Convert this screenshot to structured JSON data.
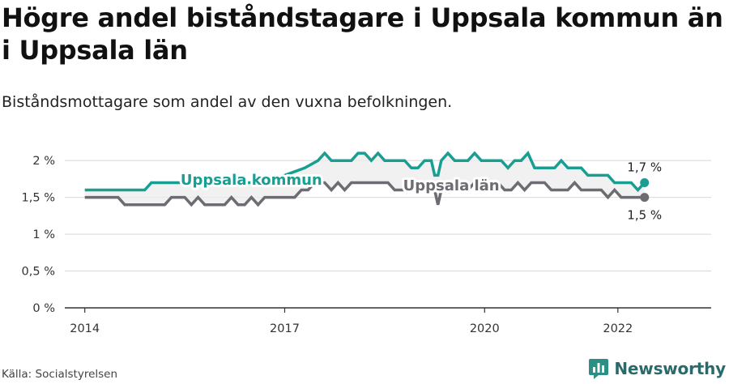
{
  "header": {
    "title": "Högre andel biståndstagare i Uppsala kommun än i Uppsala län",
    "subtitle": "Biståndsmottagare som andel av den vuxna befolkningen."
  },
  "footer": {
    "source": "Källa: Socialstyrelsen",
    "brand": "Newsworthy",
    "brand_icon": "bar-chart-logo-icon"
  },
  "chart_data": {
    "type": "line",
    "title": "",
    "xlabel": "",
    "ylabel": "",
    "xlim": [
      2013.7,
      2023.4
    ],
    "ylim": [
      0,
      2.2
    ],
    "x_ticks": [
      {
        "value": 2014,
        "label": "2014"
      },
      {
        "value": 2017,
        "label": "2017"
      },
      {
        "value": 2020,
        "label": "2020"
      },
      {
        "value": 2022,
        "label": "2022"
      }
    ],
    "y_ticks": [
      {
        "value": 0,
        "label": "0 %"
      },
      {
        "value": 0.5,
        "label": "0,5 %"
      },
      {
        "value": 1,
        "label": "1 %"
      },
      {
        "value": 1.5,
        "label": "1,5 %"
      },
      {
        "value": 2,
        "label": "2 %"
      }
    ],
    "grid": true,
    "legend": "none",
    "series": [
      {
        "name": "Uppsala kommun",
        "color": "#1a9e92",
        "end_label": "1,7 %",
        "points": [
          [
            2014.0,
            1.6
          ],
          [
            2014.6,
            1.6
          ],
          [
            2014.9,
            1.6
          ],
          [
            2015.0,
            1.7
          ],
          [
            2015.6,
            1.7
          ],
          [
            2016.0,
            1.7
          ],
          [
            2016.3,
            1.7
          ],
          [
            2016.8,
            1.7
          ],
          [
            2017.0,
            1.8
          ],
          [
            2017.3,
            1.9
          ],
          [
            2017.5,
            2.0
          ],
          [
            2017.6,
            2.1
          ],
          [
            2017.7,
            2.0
          ],
          [
            2018.0,
            2.0
          ],
          [
            2018.1,
            2.1
          ],
          [
            2018.2,
            2.1
          ],
          [
            2018.3,
            2.0
          ],
          [
            2018.4,
            2.1
          ],
          [
            2018.5,
            2.0
          ],
          [
            2018.8,
            2.0
          ],
          [
            2018.9,
            1.9
          ],
          [
            2019.0,
            1.9
          ],
          [
            2019.1,
            2.0
          ],
          [
            2019.2,
            2.0
          ],
          [
            2019.25,
            1.8
          ],
          [
            2019.3,
            1.8
          ],
          [
            2019.35,
            2.0
          ],
          [
            2019.45,
            2.1
          ],
          [
            2019.55,
            2.0
          ],
          [
            2019.75,
            2.0
          ],
          [
            2019.85,
            2.1
          ],
          [
            2019.95,
            2.0
          ],
          [
            2020.25,
            2.0
          ],
          [
            2020.35,
            1.9
          ],
          [
            2020.45,
            2.0
          ],
          [
            2020.55,
            2.0
          ],
          [
            2020.65,
            2.1
          ],
          [
            2020.75,
            1.9
          ],
          [
            2021.05,
            1.9
          ],
          [
            2021.15,
            2.0
          ],
          [
            2021.25,
            1.9
          ],
          [
            2021.45,
            1.9
          ],
          [
            2021.55,
            1.8
          ],
          [
            2021.85,
            1.8
          ],
          [
            2021.95,
            1.7
          ],
          [
            2022.2,
            1.7
          ],
          [
            2022.3,
            1.6
          ],
          [
            2022.4,
            1.7
          ]
        ]
      },
      {
        "name": "Uppsala län",
        "color": "#6c6c72",
        "end_label": "1,5 %",
        "points": [
          [
            2014.0,
            1.5
          ],
          [
            2014.5,
            1.5
          ],
          [
            2014.6,
            1.4
          ],
          [
            2015.2,
            1.4
          ],
          [
            2015.3,
            1.5
          ],
          [
            2015.5,
            1.5
          ],
          [
            2015.6,
            1.4
          ],
          [
            2015.7,
            1.5
          ],
          [
            2015.8,
            1.4
          ],
          [
            2016.1,
            1.4
          ],
          [
            2016.2,
            1.5
          ],
          [
            2016.3,
            1.4
          ],
          [
            2016.4,
            1.4
          ],
          [
            2016.5,
            1.5
          ],
          [
            2016.6,
            1.4
          ],
          [
            2016.7,
            1.5
          ],
          [
            2017.0,
            1.5
          ],
          [
            2017.15,
            1.5
          ],
          [
            2017.25,
            1.6
          ],
          [
            2017.35,
            1.6
          ],
          [
            2017.45,
            1.7
          ],
          [
            2017.6,
            1.7
          ],
          [
            2017.7,
            1.6
          ],
          [
            2017.8,
            1.7
          ],
          [
            2017.9,
            1.6
          ],
          [
            2018.0,
            1.7
          ],
          [
            2018.55,
            1.7
          ],
          [
            2018.65,
            1.6
          ],
          [
            2019.0,
            1.6
          ],
          [
            2019.1,
            1.6
          ],
          [
            2019.2,
            1.7
          ],
          [
            2019.25,
            1.6
          ],
          [
            2019.3,
            1.4
          ],
          [
            2019.35,
            1.6
          ],
          [
            2019.45,
            1.7
          ],
          [
            2019.55,
            1.6
          ],
          [
            2019.75,
            1.6
          ],
          [
            2019.85,
            1.7
          ],
          [
            2020.0,
            1.7
          ],
          [
            2020.1,
            1.6
          ],
          [
            2020.2,
            1.7
          ],
          [
            2020.3,
            1.6
          ],
          [
            2020.4,
            1.6
          ],
          [
            2020.5,
            1.7
          ],
          [
            2020.6,
            1.6
          ],
          [
            2020.7,
            1.7
          ],
          [
            2020.9,
            1.7
          ],
          [
            2021.0,
            1.6
          ],
          [
            2021.25,
            1.6
          ],
          [
            2021.35,
            1.7
          ],
          [
            2021.45,
            1.6
          ],
          [
            2021.75,
            1.6
          ],
          [
            2021.85,
            1.5
          ],
          [
            2021.95,
            1.6
          ],
          [
            2022.05,
            1.5
          ],
          [
            2022.4,
            1.5
          ]
        ]
      }
    ]
  }
}
